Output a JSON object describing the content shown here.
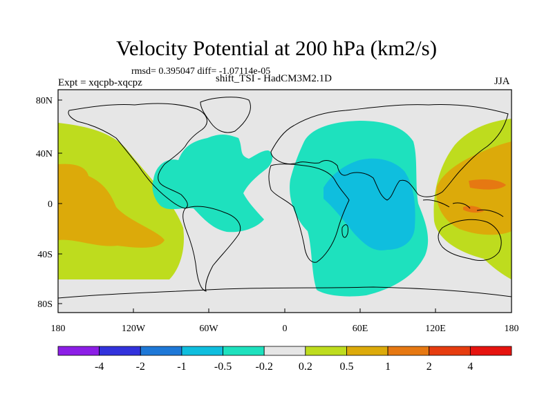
{
  "title": "Velocity Potential at 200 hPa (km2/s)",
  "stats": "rmsd= 0.395047 diff= -1.07114e-05",
  "expt": "Expt = xqcpb-xqcpz",
  "model": "shift_TSI - HadCM3M2.1D",
  "season": "JJA",
  "axes": {
    "lat_labels": [
      "80N",
      "40N",
      "0",
      "40S",
      "80S"
    ],
    "lon_labels": [
      "180",
      "120W",
      "60W",
      "0",
      "60E",
      "120E",
      "180"
    ]
  },
  "colorbar": {
    "colors": [
      "#8c1ee6",
      "#3232dc",
      "#1e78d7",
      "#0fbede",
      "#1ee1be",
      "#e6e6e6",
      "#bedc1e",
      "#dcaa0a",
      "#e67812",
      "#e63c0f",
      "#e6140f"
    ],
    "labels": [
      "-4",
      "-2",
      "-1",
      "-0.5",
      "-0.2",
      "0.2",
      "0.5",
      "1",
      "2",
      "4"
    ]
  },
  "colors": {
    "background": "#e6e6e6",
    "negative_weak": "#1ee1be",
    "negative_mid": "#0fbede",
    "positive_weak": "#bedc1e",
    "positive_mid": "#dcaa0a",
    "positive_strong": "#e67812"
  }
}
